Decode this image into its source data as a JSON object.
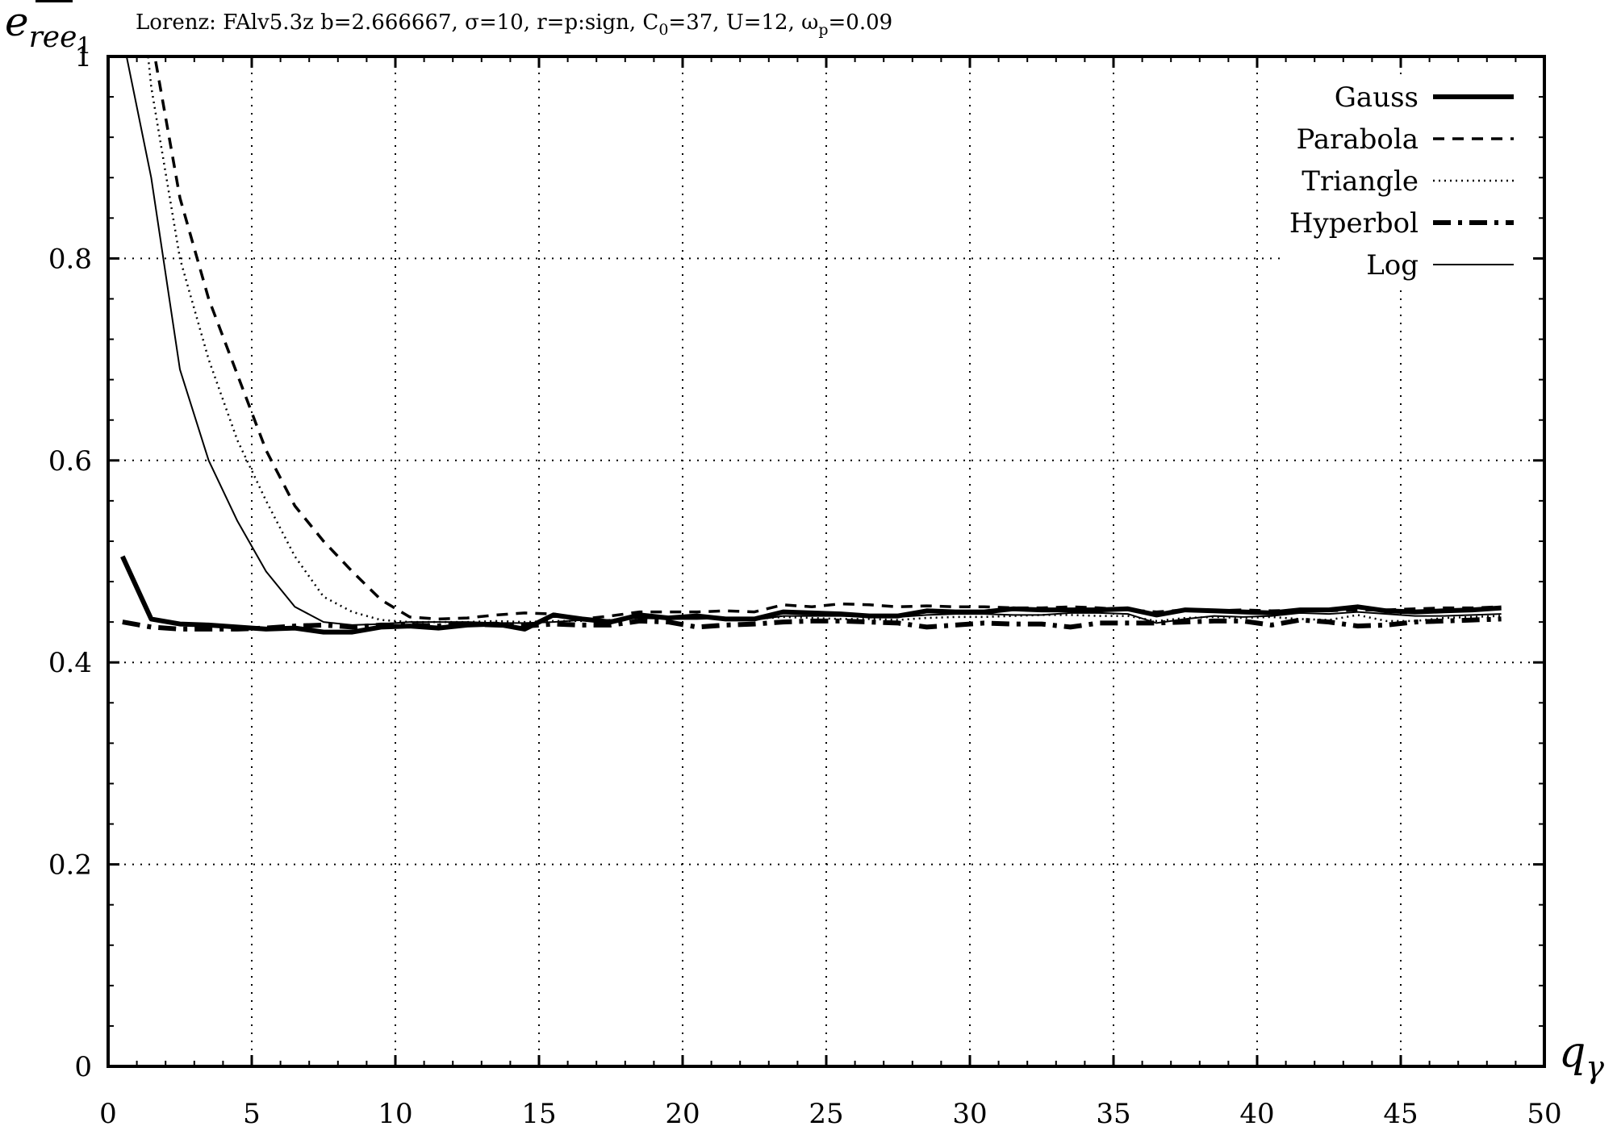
{
  "chart_data": {
    "type": "line",
    "title": "Lorenz: FAlv5.3z b=2.666667, σ=10, r=p:sign, C",
    "title_sub": "0",
    "title_mid": "=37, U=12, ω",
    "title_sub2": "p",
    "title_end": "=0.09",
    "ylabel": "e",
    "ylabel_sub": "ree",
    "ylabel_subsub": "1",
    "xlabel": "q",
    "xlabel_sub": "γ",
    "xlim": [
      0,
      50
    ],
    "ylim": [
      0,
      1
    ],
    "x_ticks": [
      "0",
      "5",
      "10",
      "15",
      "20",
      "25",
      "30",
      "35",
      "40",
      "45",
      "50"
    ],
    "y_ticks": [
      "0",
      "0.2",
      "0.4",
      "0.6",
      "0.8",
      "1"
    ],
    "grid": true,
    "legend_position": "top-right",
    "series": [
      {
        "name": "Gauss",
        "style": "thick-solid",
        "x": [
          0.5,
          1.5,
          2.5,
          3.5,
          4.5,
          5.5,
          6.5,
          7.5,
          8.5,
          9.5,
          10.5,
          11.5,
          12.5,
          13.5,
          14.5,
          15.5,
          16.5,
          17.5,
          18.5,
          19.5,
          20.5,
          21.5,
          22.5,
          23.5,
          24.5,
          25.5,
          26.5,
          27.5,
          28.5,
          29.5,
          30.5,
          31.5,
          32.5,
          33.5,
          34.5,
          35.5,
          36.5,
          37.5,
          38.5,
          39.5,
          40.5,
          41.5,
          42.5,
          43.5,
          44.5,
          45.5,
          46.5,
          47.5,
          48.5
        ],
        "y": [
          0.505,
          0.443,
          0.438,
          0.437,
          0.435,
          0.433,
          0.434,
          0.43,
          0.43,
          0.435,
          0.436,
          0.434,
          0.437,
          0.438,
          0.433,
          0.447,
          0.443,
          0.44,
          0.447,
          0.444,
          0.446,
          0.443,
          0.443,
          0.45,
          0.449,
          0.448,
          0.446,
          0.446,
          0.451,
          0.45,
          0.45,
          0.453,
          0.452,
          0.452,
          0.452,
          0.453,
          0.447,
          0.452,
          0.451,
          0.45,
          0.449,
          0.452,
          0.452,
          0.455,
          0.451,
          0.45,
          0.451,
          0.452,
          0.454
        ]
      },
      {
        "name": "Parabola",
        "style": "dashed",
        "x": [
          0.5,
          1.5,
          2.5,
          3.5,
          4.5,
          5.5,
          6.5,
          7.5,
          8.5,
          9.5,
          10.5,
          11.5,
          12.5,
          13.5,
          14.5,
          15.5,
          16.5,
          17.5,
          18.5,
          19.5,
          20.5,
          21.5,
          22.5,
          23.5,
          24.5,
          25.5,
          26.5,
          27.5,
          28.5,
          29.5,
          30.5,
          31.5,
          32.5,
          33.5,
          34.5,
          35.5,
          36.5,
          37.5,
          38.5,
          39.5,
          40.5,
          41.5,
          42.5,
          43.5,
          44.5,
          45.5,
          46.5,
          47.5,
          48.5
        ],
        "y": [
          1.3,
          1.02,
          0.86,
          0.76,
          0.685,
          0.61,
          0.555,
          0.52,
          0.49,
          0.462,
          0.445,
          0.443,
          0.444,
          0.447,
          0.449,
          0.448,
          0.443,
          0.446,
          0.45,
          0.45,
          0.45,
          0.451,
          0.45,
          0.457,
          0.455,
          0.458,
          0.457,
          0.455,
          0.456,
          0.455,
          0.455,
          0.454,
          0.454,
          0.455,
          0.454,
          0.452,
          0.45,
          0.452,
          0.451,
          0.452,
          0.451,
          0.452,
          0.451,
          0.452,
          0.452,
          0.453,
          0.454,
          0.454,
          0.455
        ]
      },
      {
        "name": "Triangle",
        "style": "dotted",
        "x": [
          0.5,
          1.5,
          2.5,
          3.5,
          4.5,
          5.5,
          6.5,
          7.5,
          8.5,
          9.5,
          10.5,
          11.5,
          12.5,
          13.5,
          14.5,
          15.5,
          16.5,
          17.5,
          18.5,
          19.5,
          20.5,
          21.5,
          22.5,
          23.5,
          24.5,
          25.5,
          26.5,
          27.5,
          28.5,
          29.5,
          30.5,
          31.5,
          32.5,
          33.5,
          34.5,
          35.5,
          36.5,
          37.5,
          38.5,
          39.5,
          40.5,
          41.5,
          42.5,
          43.5,
          44.5,
          45.5,
          46.5,
          47.5,
          48.5
        ],
        "y": [
          1.25,
          0.97,
          0.8,
          0.7,
          0.62,
          0.56,
          0.505,
          0.465,
          0.45,
          0.442,
          0.44,
          0.44,
          0.44,
          0.441,
          0.44,
          0.441,
          0.441,
          0.442,
          0.445,
          0.445,
          0.444,
          0.444,
          0.443,
          0.445,
          0.444,
          0.443,
          0.443,
          0.442,
          0.444,
          0.445,
          0.445,
          0.446,
          0.447,
          0.447,
          0.446,
          0.446,
          0.441,
          0.444,
          0.445,
          0.444,
          0.445,
          0.443,
          0.442,
          0.447,
          0.441,
          0.441,
          0.444,
          0.445,
          0.446
        ]
      },
      {
        "name": "Hyperbol",
        "style": "dashdot",
        "x": [
          0.5,
          1.5,
          2.5,
          3.5,
          4.5,
          5.5,
          6.5,
          7.5,
          8.5,
          9.5,
          10.5,
          11.5,
          12.5,
          13.5,
          14.5,
          15.5,
          16.5,
          17.5,
          18.5,
          19.5,
          20.5,
          21.5,
          22.5,
          23.5,
          24.5,
          25.5,
          26.5,
          27.5,
          28.5,
          29.5,
          30.5,
          31.5,
          32.5,
          33.5,
          34.5,
          35.5,
          36.5,
          37.5,
          38.5,
          39.5,
          40.5,
          41.5,
          42.5,
          43.5,
          44.5,
          45.5,
          46.5,
          47.5,
          48.5
        ],
        "y": [
          0.44,
          0.435,
          0.433,
          0.433,
          0.433,
          0.434,
          0.436,
          0.437,
          0.435,
          0.437,
          0.437,
          0.436,
          0.438,
          0.437,
          0.436,
          0.438,
          0.437,
          0.437,
          0.441,
          0.44,
          0.435,
          0.437,
          0.438,
          0.44,
          0.441,
          0.441,
          0.44,
          0.439,
          0.435,
          0.437,
          0.439,
          0.438,
          0.438,
          0.435,
          0.439,
          0.439,
          0.439,
          0.44,
          0.441,
          0.441,
          0.437,
          0.442,
          0.44,
          0.436,
          0.437,
          0.44,
          0.441,
          0.442,
          0.443
        ]
      },
      {
        "name": "Log",
        "style": "thin-solid",
        "x": [
          0.5,
          1.5,
          2.5,
          3.5,
          4.5,
          5.5,
          6.5,
          7.5,
          8.5,
          9.5,
          10.5,
          11.5,
          12.5,
          13.5,
          14.5,
          15.5,
          16.5,
          17.5,
          18.5,
          19.5,
          20.5,
          21.5,
          22.5,
          23.5,
          24.5,
          25.5,
          26.5,
          27.5,
          28.5,
          29.5,
          30.5,
          31.5,
          32.5,
          33.5,
          34.5,
          35.5,
          36.5,
          37.5,
          38.5,
          39.5,
          40.5,
          41.5,
          42.5,
          43.5,
          44.5,
          45.5,
          46.5,
          47.5,
          48.5
        ],
        "y": [
          1.02,
          0.88,
          0.69,
          0.6,
          0.54,
          0.49,
          0.455,
          0.44,
          0.437,
          0.438,
          0.44,
          0.44,
          0.44,
          0.439,
          0.439,
          0.44,
          0.442,
          0.442,
          0.444,
          0.443,
          0.443,
          0.444,
          0.442,
          0.446,
          0.446,
          0.446,
          0.445,
          0.445,
          0.447,
          0.448,
          0.448,
          0.447,
          0.447,
          0.449,
          0.449,
          0.448,
          0.439,
          0.443,
          0.446,
          0.445,
          0.446,
          0.449,
          0.448,
          0.45,
          0.448,
          0.446,
          0.446,
          0.447,
          0.448
        ]
      }
    ]
  }
}
